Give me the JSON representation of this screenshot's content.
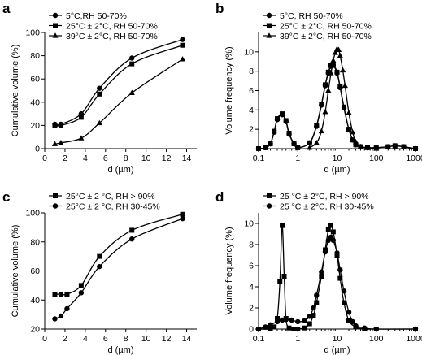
{
  "chart_data": [
    {
      "panel": "a",
      "type": "line",
      "xlabel": "d (µm)",
      "ylabel": "Cumulative volume (%)",
      "xlim": [
        0,
        15
      ],
      "ylim": [
        0,
        100
      ],
      "xticks": [
        0,
        2,
        4,
        6,
        8,
        10,
        12,
        14
      ],
      "yticks": [
        0,
        20,
        40,
        60,
        80,
        100
      ],
      "legend_position": "top-left",
      "series": [
        {
          "name": "5°C,RH 50-70%",
          "marker": "circle",
          "x": [
            1,
            1.6,
            3.6,
            5.4,
            8.6,
            13.6
          ],
          "y": [
            21,
            21,
            30,
            52,
            78,
            94
          ]
        },
        {
          "name": "25°C ± 2°C, RH 50-70%",
          "marker": "square",
          "x": [
            1,
            1.6,
            3.6,
            5.4,
            8.6,
            13.6
          ],
          "y": [
            20,
            20,
            27,
            47,
            73,
            89
          ]
        },
        {
          "name": "39°C ± 2°C, RH 50-70%",
          "marker": "triangle",
          "x": [
            1,
            1.6,
            3.6,
            5.4,
            8.6,
            13.6
          ],
          "y": [
            4,
            5,
            9,
            22,
            48,
            77
          ]
        }
      ]
    },
    {
      "panel": "b",
      "type": "line",
      "xlabel": "d (µm)",
      "ylabel": "Volume frequency (%)",
      "xscale": "log",
      "xlim": [
        0.1,
        1000
      ],
      "ylim": [
        0,
        12
      ],
      "xticks": [
        0.1,
        1,
        10,
        100,
        1000
      ],
      "xtick_labels": [
        "0.1",
        "1",
        "10",
        "100",
        "1000"
      ],
      "yticks": [
        2,
        4,
        6,
        8,
        10
      ],
      "legend_position": "top-left",
      "series": [
        {
          "name": "5°C, RH 50-70%",
          "marker": "circle",
          "x": [
            0.1,
            0.15,
            0.2,
            0.25,
            0.3,
            0.4,
            0.5,
            0.6,
            0.8,
            1,
            2,
            3,
            4,
            5,
            6,
            7,
            8,
            10,
            12,
            15,
            20,
            25,
            30,
            40,
            60,
            100,
            200,
            300,
            500,
            1000
          ],
          "y": [
            0,
            0.1,
            0.5,
            1.7,
            3.0,
            3.5,
            2.8,
            1.5,
            0.5,
            0.1,
            0.6,
            2.3,
            4.5,
            6.5,
            7.8,
            8.5,
            8.6,
            7.8,
            6.3,
            4.2,
            2.0,
            0.9,
            0.4,
            0.2,
            0.1,
            0.1,
            0.2,
            0.3,
            0.2,
            0
          ]
        },
        {
          "name": "25°C ± 2°C, RH 50-70%",
          "marker": "square",
          "x": [
            0.1,
            0.15,
            0.2,
            0.25,
            0.3,
            0.4,
            0.5,
            0.6,
            0.8,
            1,
            2,
            3,
            4,
            5,
            6,
            7,
            8,
            10,
            12,
            15,
            20,
            25,
            30,
            40,
            60,
            100,
            200,
            300,
            500,
            1000
          ],
          "y": [
            0,
            0.1,
            0.5,
            1.8,
            3.1,
            3.6,
            2.9,
            1.6,
            0.5,
            0.1,
            0.6,
            2.4,
            4.6,
            6.6,
            7.9,
            8.6,
            8.7,
            7.9,
            6.4,
            4.3,
            2.0,
            0.9,
            0.4,
            0.2,
            0.1,
            0.1,
            0.2,
            0.3,
            0.2,
            0
          ]
        },
        {
          "name": "39°C ± 2°C, RH 50-70%",
          "marker": "triangle",
          "x": [
            2,
            3,
            4,
            5,
            6,
            7,
            8,
            9,
            10,
            11,
            12,
            14,
            16,
            20,
            25,
            30,
            40,
            60,
            100
          ],
          "y": [
            0.1,
            0.6,
            1.8,
            3.8,
            6.0,
            7.8,
            9.1,
            9.9,
            10.3,
            10.2,
            9.6,
            8.1,
            6.5,
            3.7,
            1.7,
            0.7,
            0.2,
            0.1,
            0
          ]
        }
      ]
    },
    {
      "panel": "c",
      "type": "line",
      "xlabel": "d (µm)",
      "ylabel": "Cumulative volume (%)",
      "xlim": [
        0,
        15
      ],
      "ylim": [
        20,
        100
      ],
      "xticks": [
        0,
        2,
        4,
        6,
        8,
        10,
        12,
        14
      ],
      "yticks": [
        20,
        40,
        60,
        80,
        100
      ],
      "legend_position": "top-left",
      "series": [
        {
          "name": "25°C ± 2 °C, RH > 90%",
          "marker": "square",
          "x": [
            1,
            1.6,
            2.2,
            3.6,
            5.4,
            8.6,
            13.6
          ],
          "y": [
            44,
            44,
            44,
            50,
            70,
            88,
            99
          ]
        },
        {
          "name": "25°C ± 2 °C, RH 30-45%",
          "marker": "circle",
          "x": [
            1,
            1.6,
            2.2,
            3.6,
            5.4,
            8.6,
            13.6
          ],
          "y": [
            27,
            29,
            34,
            45,
            63,
            82,
            96
          ]
        }
      ]
    },
    {
      "panel": "d",
      "type": "line",
      "xlabel": "d (µm)",
      "ylabel": "Volume frequency (%)",
      "xscale": "log",
      "xlim": [
        0.1,
        1000
      ],
      "ylim": [
        0,
        11
      ],
      "xticks": [
        0.1,
        1,
        10,
        100,
        1000
      ],
      "xtick_labels": [
        "0.1",
        "1",
        "10",
        "100",
        "1000"
      ],
      "yticks": [
        0,
        2,
        4,
        6,
        8,
        10
      ],
      "legend_position": "top-left",
      "series": [
        {
          "name": "25 °C ± 2°C, RH > 90%",
          "marker": "square",
          "x": [
            0.1,
            0.2,
            0.25,
            0.3,
            0.35,
            0.4,
            0.45,
            0.5,
            0.6,
            0.8,
            1,
            1.5,
            2,
            2.5,
            3,
            4,
            5,
            6,
            7,
            8,
            10,
            12,
            15,
            20,
            30,
            50,
            100,
            1000
          ],
          "y": [
            0,
            0,
            0.2,
            1.0,
            4.5,
            9.8,
            5.0,
            1.0,
            0.1,
            0,
            0,
            0.1,
            0.5,
            1.3,
            2.5,
            5.0,
            7.5,
            9.4,
            9.8,
            9.2,
            7.0,
            4.8,
            2.5,
            0.8,
            0.2,
            0,
            0,
            0
          ]
        },
        {
          "name": "25 °C ± 2°C, RH 30-45%",
          "marker": "circle",
          "x": [
            0.1,
            0.15,
            0.2,
            0.3,
            0.4,
            0.5,
            0.7,
            1,
            1.5,
            2,
            2.5,
            3,
            4,
            5,
            6,
            7,
            8,
            10,
            12,
            15,
            20,
            25,
            30,
            50,
            100,
            1000
          ],
          "y": [
            0,
            0.2,
            0.4,
            0.7,
            0.85,
            0.9,
            0.85,
            0.7,
            0.8,
            1.2,
            2.0,
            3.2,
            5.4,
            7.3,
            8.4,
            8.7,
            8.4,
            7.2,
            5.6,
            3.6,
            1.6,
            0.7,
            0.3,
            0.1,
            0,
            0
          ]
        }
      ]
    }
  ]
}
